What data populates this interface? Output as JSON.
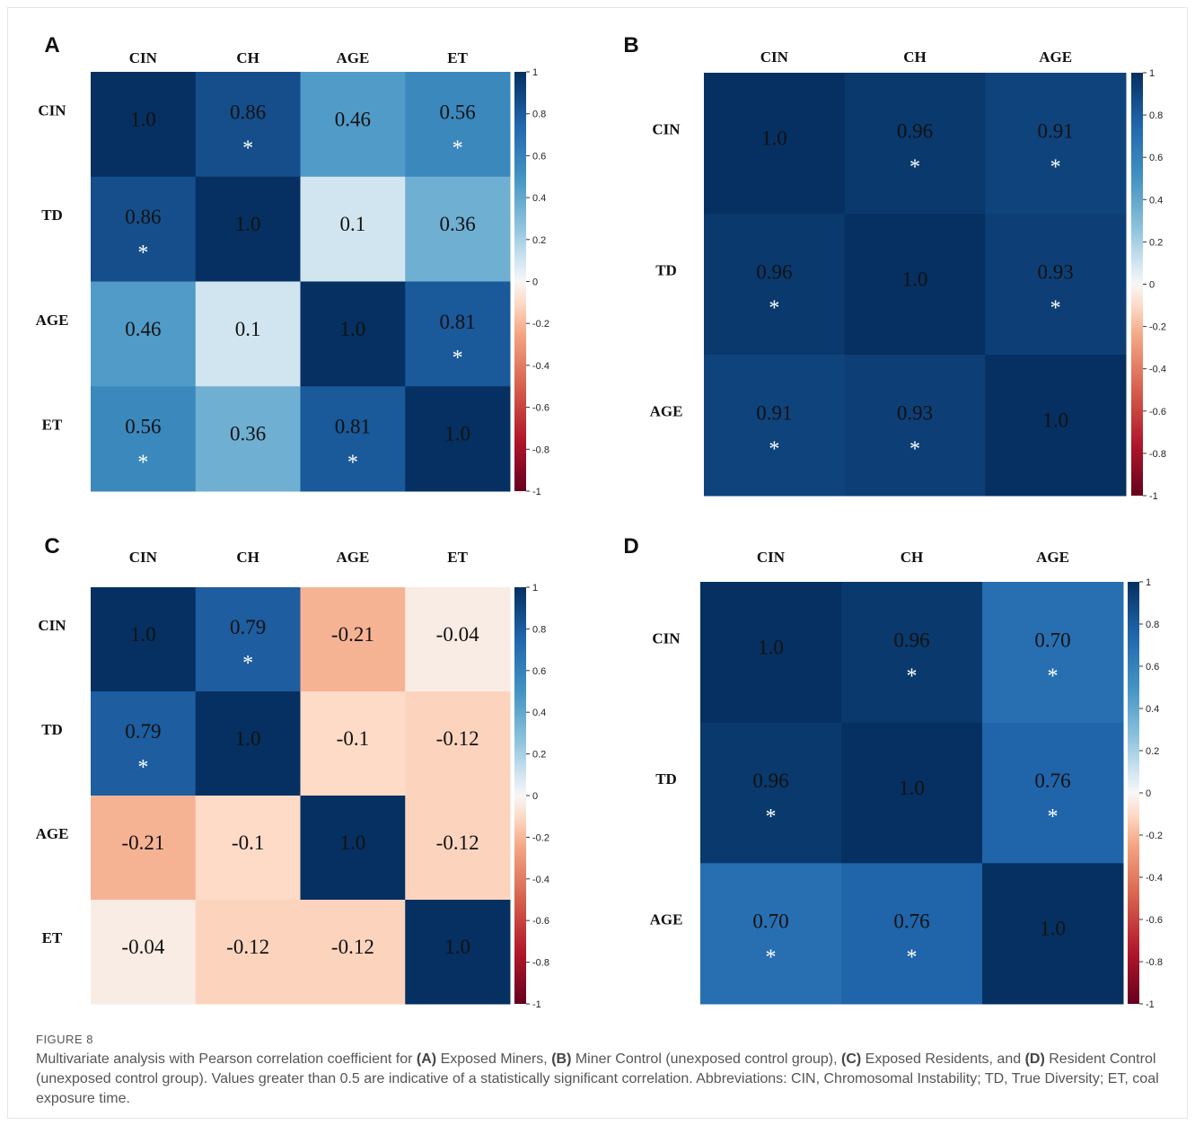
{
  "figure_label": "FIGURE 8",
  "caption": {
    "t1": "Multivariate analysis with Pearson correlation coefficient for ",
    "a": "(A)",
    "t2": " Exposed Miners, ",
    "b": "(B)",
    "t3": " Miner Control (unexposed control group), ",
    "c": "(C)",
    "t4": " Exposed Residents, and ",
    "d": "(D)",
    "t5": " Resident Control (unexposed control group). Values greater than 0.5 are indicative of a statistically significant correlation. Abbreviations: CIN, Chromosomal Instability; TD, True Diversity; ET, coal exposure time."
  },
  "colorbar_ticks": [
    "1",
    "0.8",
    "0.6",
    "0.4",
    "0.2",
    "0",
    "-0.2",
    "-0.4",
    "-0.6",
    "-0.8",
    "-1"
  ],
  "chart_data": [
    {
      "type": "heatmap",
      "panel": "A",
      "col_labels": [
        "CIN",
        "CH",
        "AGE",
        "ET"
      ],
      "row_labels": [
        "CIN",
        "TD",
        "AGE",
        "ET"
      ],
      "values": [
        [
          1.0,
          0.86,
          0.46,
          0.56
        ],
        [
          0.86,
          1.0,
          0.1,
          0.36
        ],
        [
          0.46,
          0.1,
          1.0,
          0.81
        ],
        [
          0.56,
          0.36,
          0.81,
          1.0
        ]
      ],
      "labels": [
        [
          "1.0",
          "0.86",
          "0.46",
          "0.56"
        ],
        [
          "0.86",
          "1.0",
          "0.1",
          "0.36"
        ],
        [
          "0.46",
          "0.1",
          "1.0",
          "0.81"
        ],
        [
          "0.56",
          "0.36",
          "0.81",
          "1.0"
        ]
      ],
      "significant": [
        [
          false,
          true,
          false,
          true
        ],
        [
          true,
          false,
          false,
          false
        ],
        [
          false,
          false,
          false,
          true
        ],
        [
          true,
          false,
          true,
          false
        ]
      ],
      "color_range": [
        -1,
        1
      ]
    },
    {
      "type": "heatmap",
      "panel": "B",
      "col_labels": [
        "CIN",
        "CH",
        "AGE"
      ],
      "row_labels": [
        "CIN",
        "TD",
        "AGE"
      ],
      "values": [
        [
          1.0,
          0.96,
          0.91
        ],
        [
          0.96,
          1.0,
          0.93
        ],
        [
          0.91,
          0.93,
          1.0
        ]
      ],
      "labels": [
        [
          "1.0",
          "0.96",
          "0.91"
        ],
        [
          "0.96",
          "1.0",
          "0.93"
        ],
        [
          "0.91",
          "0.93",
          "1.0"
        ]
      ],
      "significant": [
        [
          false,
          true,
          true
        ],
        [
          true,
          false,
          true
        ],
        [
          true,
          true,
          false
        ]
      ],
      "color_range": [
        -1,
        1
      ]
    },
    {
      "type": "heatmap",
      "panel": "C",
      "col_labels": [
        "CIN",
        "CH",
        "AGE",
        "ET"
      ],
      "row_labels": [
        "CIN",
        "TD",
        "AGE",
        "ET"
      ],
      "values": [
        [
          1.0,
          0.79,
          -0.21,
          -0.04
        ],
        [
          0.79,
          1.0,
          -0.1,
          -0.12
        ],
        [
          -0.21,
          -0.1,
          1.0,
          -0.12
        ],
        [
          -0.04,
          -0.12,
          -0.12,
          1.0
        ]
      ],
      "labels": [
        [
          "1.0",
          "0.79",
          "-0.21",
          "-0.04"
        ],
        [
          "0.79",
          "1.0",
          "-0.1",
          "-0.12"
        ],
        [
          "-0.21",
          "-0.1",
          "1.0",
          "-0.12"
        ],
        [
          "-0.04",
          "-0.12",
          "-0.12",
          "1.0"
        ]
      ],
      "significant": [
        [
          false,
          true,
          false,
          false
        ],
        [
          true,
          false,
          false,
          false
        ],
        [
          false,
          false,
          false,
          false
        ],
        [
          false,
          false,
          false,
          false
        ]
      ],
      "color_range": [
        -1,
        1
      ]
    },
    {
      "type": "heatmap",
      "panel": "D",
      "col_labels": [
        "CIN",
        "CH",
        "AGE"
      ],
      "row_labels": [
        "CIN",
        "TD",
        "AGE"
      ],
      "values": [
        [
          1.0,
          0.96,
          0.7
        ],
        [
          0.96,
          1.0,
          0.76
        ],
        [
          0.7,
          0.76,
          1.0
        ]
      ],
      "labels": [
        [
          "1.0",
          "0.96",
          "0.70"
        ],
        [
          "0.96",
          "1.0",
          "0.76"
        ],
        [
          "0.70",
          "0.76",
          "1.0"
        ]
      ],
      "significant": [
        [
          false,
          true,
          true
        ],
        [
          true,
          false,
          true
        ],
        [
          true,
          true,
          false
        ]
      ],
      "color_range": [
        -1,
        1
      ]
    }
  ]
}
